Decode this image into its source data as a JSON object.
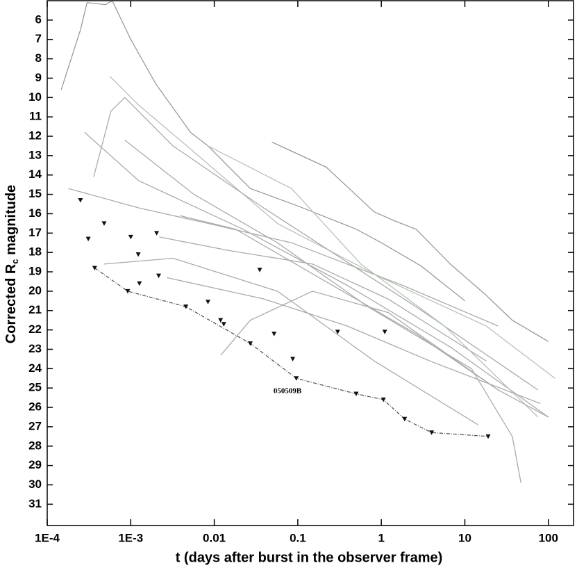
{
  "chart_data": {
    "type": "line",
    "xlabel": "t (days after burst in the observer frame)",
    "ylabel": [
      "Corrected R",
      "c",
      " magnitude"
    ],
    "annotation": "050509B",
    "xscale": "log",
    "y_inverted": true,
    "xlim": [
      0.0001,
      200
    ],
    "ylim": [
      5,
      32.1
    ],
    "xticks": [
      {
        "value": 0.0001,
        "label": "1E-4"
      },
      {
        "value": 0.001,
        "label": "1E-3"
      },
      0.01,
      0.1,
      1,
      10,
      100
    ],
    "yticks": [
      6,
      7,
      8,
      9,
      10,
      11,
      12,
      13,
      14,
      15,
      16,
      17,
      18,
      19,
      20,
      21,
      22,
      23,
      24,
      25,
      26,
      27,
      28,
      29,
      30,
      31
    ],
    "series": [
      {
        "color": "#9a9a9a",
        "x": [
          0.000147,
          0.00025,
          0.0003,
          0.0005,
          0.0006,
          0.001,
          0.002,
          0.0052,
          0.0084,
          0.027,
          0.1,
          0.5,
          1,
          3,
          10
        ],
        "values": [
          9.6,
          6.5,
          5.1,
          5.2,
          5.0,
          7,
          9.3,
          11.8,
          12.5,
          14.7,
          15.6,
          16.8,
          17.5,
          18.7,
          20.5
        ]
      },
      {
        "color": "#9a9a9a",
        "x": [
          0.049,
          0.22,
          0.82,
          1.5,
          2.6,
          6.7,
          17.9,
          37,
          100
        ],
        "values": [
          12.3,
          13.6,
          15.9,
          16.4,
          16.8,
          18.6,
          20.2,
          21.5,
          22.6
        ]
      },
      {
        "color": "#b4c4b4",
        "x": [
          0.00056,
          0.00125,
          0.0047,
          0.057,
          1.0,
          18,
          120
        ],
        "values": [
          8.9,
          10.4,
          12.5,
          16.5,
          19.3,
          21.8,
          24.5
        ]
      },
      {
        "color": "#aaaaaa",
        "x": [
          0.00036,
          0.00058,
          0.00085,
          0.0032,
          0.039,
          2.6,
          75
        ],
        "values": [
          14.1,
          10.7,
          10.0,
          12.5,
          15.7,
          20.8,
          25.1
        ]
      },
      {
        "color": "#aaaaaa",
        "x": [
          0.00028,
          0.00125,
          0.022,
          0.39,
          6.8,
          100
        ],
        "values": [
          11.8,
          14.3,
          16.8,
          19.7,
          22.9,
          26.5
        ]
      },
      {
        "color": "#aaaaaa",
        "x": [
          0.0022,
          0.015,
          0.15,
          1.2,
          18
        ],
        "values": [
          17.2,
          17.9,
          18.6,
          20.4,
          23.6
        ]
      },
      {
        "color": "#aaaaaa",
        "x": [
          0.00018,
          0.00125,
          0.0084,
          0.084,
          1.8,
          25
        ],
        "values": [
          14.7,
          15.7,
          16.5,
          17.5,
          19.7,
          21.8
        ]
      },
      {
        "color": "#aaaaaa",
        "x": [
          0.00085,
          0.0057,
          0.057,
          0.69,
          12,
          37,
          47
        ],
        "values": [
          12.2,
          15.0,
          17.5,
          20.8,
          24.0,
          27.5,
          29.9
        ]
      },
      {
        "color": "#b4c4b4",
        "x": [
          0.0084,
          0.084,
          0.57,
          5.7,
          75
        ],
        "values": [
          12.5,
          14.7,
          18.6,
          21.8,
          26.5
        ]
      },
      {
        "color": "#aaaaaa",
        "x": [
          0.012,
          0.027,
          0.15,
          1.2,
          25
        ],
        "values": [
          23.3,
          21.5,
          20.0,
          21.1,
          25.1
        ]
      },
      {
        "color": "#aaaaaa",
        "x": [
          0.0027,
          0.039,
          0.39,
          3.8,
          80
        ],
        "values": [
          19.3,
          20.4,
          21.8,
          23.6,
          25.8
        ]
      },
      {
        "color": "#aaaaaa",
        "x": [
          0.00048,
          0.0032,
          0.057,
          0.82,
          14.4
        ],
        "values": [
          18.6,
          18.3,
          20.0,
          23.6,
          26.9
        ]
      },
      {
        "color": "#aaaaaa",
        "x": [
          0.0039,
          0.018,
          0.18,
          2.6,
          25,
          100
        ],
        "values": [
          16.1,
          16.8,
          19.3,
          22.2,
          25.1,
          26.5
        ]
      },
      {
        "color": "#555555",
        "dash": true,
        "marker": "triangle-down",
        "x": [
          0.00037,
          0.00092,
          0.00457,
          0.027,
          0.096,
          0.5,
          1.06,
          1.9,
          4,
          19
        ],
        "values": [
          18.8,
          20.0,
          20.8,
          22.7,
          24.5,
          25.3,
          25.6,
          26.6,
          27.3,
          27.5
        ]
      },
      {
        "color": "#222222",
        "line": false,
        "marker": "triangle-down",
        "x": [
          0.00025,
          0.00031,
          0.00048,
          0.001,
          0.00123,
          0.00127,
          0.00204,
          0.00216,
          0.0084,
          0.0119,
          0.013,
          0.035,
          0.052,
          0.087,
          0.3,
          1.1
        ],
        "values": [
          15.3,
          17.3,
          16.5,
          17.2,
          18.1,
          19.6,
          17.0,
          19.2,
          20.55,
          21.5,
          21.7,
          18.9,
          22.2,
          23.5,
          22.1,
          22.1
        ]
      }
    ]
  }
}
